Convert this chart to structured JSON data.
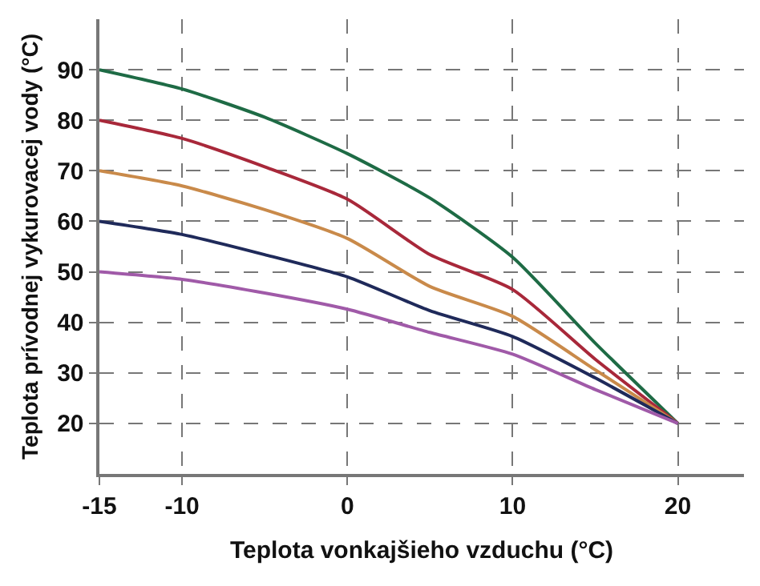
{
  "chart_data": {
    "type": "line",
    "xlabel": "Teplota vonkajšieho vzduchu (°C)",
    "ylabel": "Teplota prívodnej vykurovacej vody (°C)",
    "x": [
      -15,
      -10,
      -5,
      0,
      5,
      10,
      15,
      20
    ],
    "series": [
      {
        "color": "#1e6b45",
        "values": [
          90,
          86.2,
          80.6,
          73.4,
          64.6,
          52.9,
          35.9,
          20
        ]
      },
      {
        "color": "#a8283a",
        "values": [
          80,
          76.4,
          70.8,
          64.4,
          53.4,
          46.5,
          32.7,
          20
        ]
      },
      {
        "color": "#c98a4a",
        "values": [
          70,
          67,
          62.3,
          56.6,
          47.1,
          41.2,
          30.6,
          20
        ]
      },
      {
        "color": "#1f2a5a",
        "values": [
          60,
          57.4,
          53.4,
          49,
          42.3,
          37.2,
          29,
          20
        ]
      },
      {
        "color": "#a05aa8",
        "values": [
          50,
          48.5,
          45.8,
          42.6,
          38,
          33.7,
          26.7,
          20
        ]
      }
    ],
    "xlim": [
      -15,
      24
    ],
    "ylim": [
      10,
      100
    ],
    "xticks": [
      -15,
      -10,
      0,
      10,
      20
    ],
    "yticks": [
      20,
      30,
      40,
      50,
      60,
      70,
      80,
      90
    ],
    "grid": true,
    "marker": "none",
    "line_style": "solid"
  }
}
